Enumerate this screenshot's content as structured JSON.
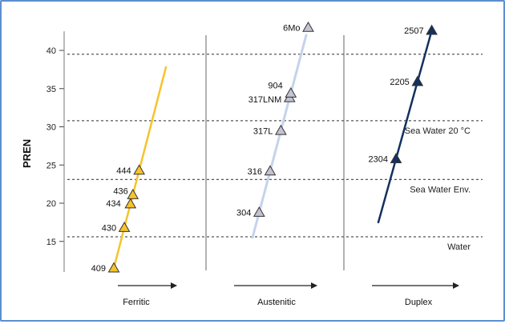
{
  "chart_data": {
    "type": "scatter",
    "ylabel": "PREN",
    "ylim": [
      10,
      43
    ],
    "yticks": [
      15,
      20,
      25,
      30,
      35,
      40
    ],
    "panels": [
      {
        "name": "Ferritic",
        "color": "#f7c32a",
        "marker_color": "#f7c32a",
        "trend": [
          [
            409,
            11.5
          ],
          [
            444,
            37.8
          ]
        ],
        "points": [
          {
            "label": "409",
            "y": 11.5
          },
          {
            "label": "430",
            "y": 16.8
          },
          {
            "label": "434",
            "y": 19.9
          },
          {
            "label": "436",
            "y": 21.1
          },
          {
            "label": "444",
            "y": 24.3
          }
        ]
      },
      {
        "name": "Austenitic",
        "color": "#c5d3ea",
        "marker_color": "#c3c3d2",
        "trend": [
          [
            304,
            15.5
          ],
          [
            904,
            42.0
          ]
        ],
        "points": [
          {
            "label": "304",
            "y": 18.8
          },
          {
            "label": "316",
            "y": 24.2
          },
          {
            "label": "317L",
            "y": 29.5
          },
          {
            "label": "317LNM",
            "y": 33.8
          },
          {
            "label": "904",
            "y": 34.4
          },
          {
            "label": "6Mo",
            "y": 43.0
          }
        ]
      },
      {
        "name": "Duplex",
        "color": "#14305e",
        "marker_color": "#14305e",
        "trend": [
          [
            2304,
            17.5
          ],
          [
            2507,
            42.0
          ]
        ],
        "points": [
          {
            "label": "2304",
            "y": 25.8
          },
          {
            "label": "2205",
            "y": 35.9
          },
          {
            "label": "2507",
            "y": 42.6
          }
        ]
      }
    ],
    "reference_lines": [
      {
        "label": "Water",
        "y": 15.6
      },
      {
        "label": "Sea Water Env.",
        "y": 23.1
      },
      {
        "label": "Sea Water 20 °C",
        "y": 30.8
      },
      {
        "label": "",
        "y": 39.5
      }
    ]
  }
}
